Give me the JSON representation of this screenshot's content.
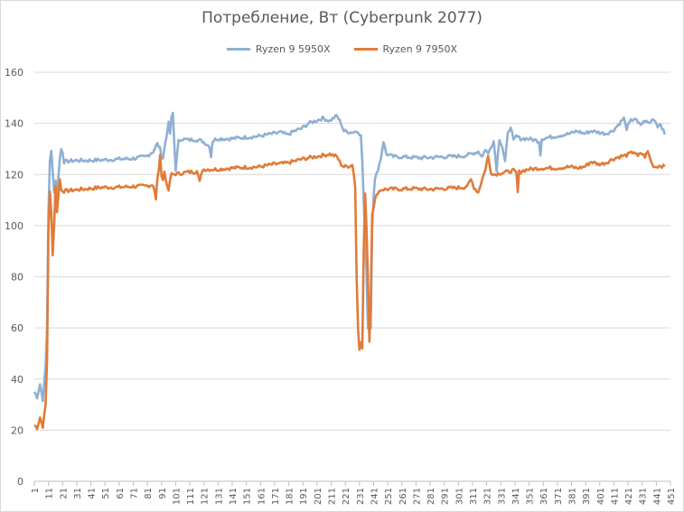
{
  "chart_data": {
    "type": "line",
    "title": "Потребление, Вт (Cyberpunk 2077)",
    "xlabel": "",
    "ylabel": "",
    "ylim": [
      0,
      160
    ],
    "yticks": [
      0,
      20,
      40,
      60,
      80,
      100,
      120,
      140,
      160
    ],
    "xlim": [
      1,
      451
    ],
    "xtick_step": 10,
    "grid": "horizontal",
    "legend": "top-center",
    "series": [
      {
        "name": "Ryzen 9 5950X",
        "color": "#8fb0d3",
        "keypoints": [
          [
            1,
            35
          ],
          [
            3,
            33
          ],
          [
            5,
            38
          ],
          [
            7,
            32
          ],
          [
            9,
            45
          ],
          [
            10,
            60
          ],
          [
            11,
            105
          ],
          [
            12,
            125
          ],
          [
            13,
            129
          ],
          [
            14,
            122
          ],
          [
            15,
            113
          ],
          [
            16,
            118
          ],
          [
            17,
            112
          ],
          [
            18,
            119
          ],
          [
            19,
            126
          ],
          [
            20,
            130
          ],
          [
            21,
            129
          ],
          [
            22,
            125
          ],
          [
            30,
            125.5
          ],
          [
            40,
            125.5
          ],
          [
            50,
            125.7
          ],
          [
            60,
            126
          ],
          [
            70,
            126.2
          ],
          [
            80,
            127
          ],
          [
            85,
            129
          ],
          [
            88,
            132
          ],
          [
            90,
            130
          ],
          [
            91,
            127
          ],
          [
            92,
            126.5
          ],
          [
            95,
            137
          ],
          [
            96,
            140
          ],
          [
            97,
            136
          ],
          [
            98,
            142
          ],
          [
            99,
            144
          ],
          [
            100,
            132
          ],
          [
            101,
            122
          ],
          [
            103,
            133
          ],
          [
            105,
            134
          ],
          [
            110,
            133.5
          ],
          [
            115,
            133.7
          ],
          [
            120,
            133
          ],
          [
            125,
            131
          ],
          [
            126,
            127
          ],
          [
            127,
            133
          ],
          [
            130,
            134
          ],
          [
            140,
            134
          ],
          [
            150,
            134.5
          ],
          [
            160,
            135
          ],
          [
            170,
            136
          ],
          [
            175,
            136.5
          ],
          [
            180,
            135.5
          ],
          [
            185,
            137
          ],
          [
            190,
            138
          ],
          [
            195,
            140
          ],
          [
            200,
            141
          ],
          [
            205,
            142
          ],
          [
            210,
            141
          ],
          [
            215,
            143
          ],
          [
            218,
            140
          ],
          [
            220,
            137
          ],
          [
            225,
            136.5
          ],
          [
            230,
            137
          ],
          [
            232,
            135
          ],
          [
            233,
            125
          ],
          [
            234,
            110
          ],
          [
            235,
            95
          ],
          [
            236,
            82
          ],
          [
            237,
            60
          ],
          [
            238,
            60
          ],
          [
            239,
            60
          ],
          [
            240,
            100
          ],
          [
            241,
            112
          ],
          [
            242,
            118
          ],
          [
            244,
            122
          ],
          [
            246,
            126
          ],
          [
            248,
            133
          ],
          [
            250,
            128
          ],
          [
            255,
            127
          ],
          [
            265,
            126.8
          ],
          [
            275,
            126.5
          ],
          [
            285,
            126.8
          ],
          [
            295,
            127
          ],
          [
            305,
            127.3
          ],
          [
            310,
            128
          ],
          [
            315,
            129
          ],
          [
            318,
            127
          ],
          [
            320,
            130
          ],
          [
            322,
            128
          ],
          [
            324,
            131
          ],
          [
            326,
            133
          ],
          [
            328,
            122
          ],
          [
            330,
            134
          ],
          [
            332,
            131
          ],
          [
            334,
            125
          ],
          [
            336,
            136
          ],
          [
            338,
            139
          ],
          [
            340,
            133
          ],
          [
            342,
            135
          ],
          [
            345,
            134
          ],
          [
            350,
            134
          ],
          [
            355,
            133.5
          ],
          [
            358,
            133
          ],
          [
            359,
            128
          ],
          [
            360,
            134
          ],
          [
            365,
            134.5
          ],
          [
            370,
            135
          ],
          [
            375,
            135.5
          ],
          [
            380,
            136
          ],
          [
            385,
            137
          ],
          [
            390,
            136
          ],
          [
            395,
            137
          ],
          [
            400,
            136.5
          ],
          [
            405,
            136
          ],
          [
            410,
            137
          ],
          [
            415,
            140
          ],
          [
            418,
            142
          ],
          [
            420,
            138
          ],
          [
            423,
            141
          ],
          [
            426,
            142
          ],
          [
            428,
            140
          ],
          [
            430,
            139.5
          ],
          [
            433,
            141
          ],
          [
            436,
            140
          ],
          [
            439,
            142
          ],
          [
            442,
            139
          ],
          [
            444,
            140
          ],
          [
            446,
            137
          ],
          [
            447,
            135.5
          ]
        ]
      },
      {
        "name": "Ryzen 9 7950X",
        "color": "#e07b39",
        "keypoints": [
          [
            1,
            22
          ],
          [
            3,
            21
          ],
          [
            5,
            25
          ],
          [
            7,
            21.5
          ],
          [
            9,
            30
          ],
          [
            10,
            48
          ],
          [
            11,
            98
          ],
          [
            12,
            113
          ],
          [
            13,
            105
          ],
          [
            14,
            89
          ],
          [
            15,
            100
          ],
          [
            16,
            116
          ],
          [
            17,
            105
          ],
          [
            18,
            112
          ],
          [
            19,
            118
          ],
          [
            20,
            114
          ],
          [
            22,
            113.5
          ],
          [
            30,
            114
          ],
          [
            40,
            114.5
          ],
          [
            50,
            115
          ],
          [
            60,
            115
          ],
          [
            70,
            115.3
          ],
          [
            80,
            115.5
          ],
          [
            85,
            116
          ],
          [
            86,
            114
          ],
          [
            87,
            110
          ],
          [
            88,
            118
          ],
          [
            89,
            122
          ],
          [
            90,
            127
          ],
          [
            91,
            120
          ],
          [
            92,
            118
          ],
          [
            93,
            121
          ],
          [
            94,
            118
          ],
          [
            95,
            116
          ],
          [
            96,
            113
          ],
          [
            97,
            118
          ],
          [
            98,
            120
          ],
          [
            105,
            120.5
          ],
          [
            110,
            121
          ],
          [
            115,
            121
          ],
          [
            116,
            122
          ],
          [
            118,
            117
          ],
          [
            120,
            122
          ],
          [
            130,
            122
          ],
          [
            140,
            122.5
          ],
          [
            150,
            122.8
          ],
          [
            160,
            123
          ],
          [
            170,
            124
          ],
          [
            180,
            124.5
          ],
          [
            190,
            126
          ],
          [
            200,
            127
          ],
          [
            210,
            128
          ],
          [
            215,
            127
          ],
          [
            218,
            124
          ],
          [
            220,
            123
          ],
          [
            225,
            123.5
          ],
          [
            226,
            124
          ],
          [
            227,
            120
          ],
          [
            228,
            115
          ],
          [
            229,
            80
          ],
          [
            230,
            60
          ],
          [
            231,
            52
          ],
          [
            232,
            54
          ],
          [
            233,
            52
          ],
          [
            234,
            90
          ],
          [
            235,
            112
          ],
          [
            236,
            100
          ],
          [
            237,
            80
          ],
          [
            238,
            55
          ],
          [
            239,
            70
          ],
          [
            240,
            105
          ],
          [
            242,
            110
          ],
          [
            244,
            113
          ],
          [
            246,
            114
          ],
          [
            250,
            114.3
          ],
          [
            260,
            114.3
          ],
          [
            270,
            114.5
          ],
          [
            280,
            114.2
          ],
          [
            290,
            114.5
          ],
          [
            300,
            114.8
          ],
          [
            305,
            115
          ],
          [
            308,
            116
          ],
          [
            310,
            118
          ],
          [
            312,
            115
          ],
          [
            315,
            113
          ],
          [
            320,
            122
          ],
          [
            322,
            127
          ],
          [
            324,
            121
          ],
          [
            326,
            120
          ],
          [
            330,
            120.5
          ],
          [
            335,
            121
          ],
          [
            340,
            121.5
          ],
          [
            342,
            120.5
          ],
          [
            343,
            113
          ],
          [
            344,
            121
          ],
          [
            350,
            122
          ],
          [
            360,
            122.5
          ],
          [
            370,
            122.5
          ],
          [
            380,
            123
          ],
          [
            385,
            122.5
          ],
          [
            390,
            123
          ],
          [
            395,
            125
          ],
          [
            400,
            124
          ],
          [
            405,
            124.5
          ],
          [
            410,
            126
          ],
          [
            415,
            127
          ],
          [
            420,
            127.5
          ],
          [
            425,
            129
          ],
          [
            428,
            127
          ],
          [
            430,
            128.5
          ],
          [
            433,
            127
          ],
          [
            435,
            129
          ],
          [
            438,
            124
          ],
          [
            440,
            123
          ],
          [
            444,
            123.5
          ],
          [
            447,
            123
          ]
        ]
      }
    ]
  }
}
